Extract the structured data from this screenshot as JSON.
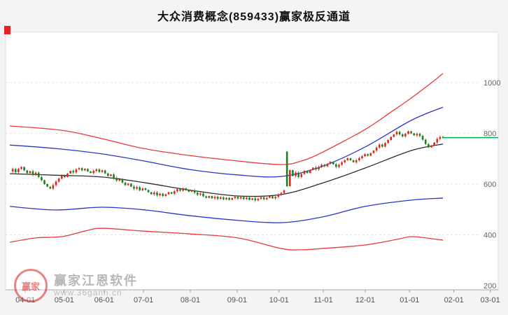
{
  "header": {
    "title": "大众消费概念(859433)赢家极反通道"
  },
  "watermark": {
    "logo_text": "赢家",
    "brand": "赢家江恩软件",
    "url": "www.36gann.cn"
  },
  "chart_data": {
    "type": "candlestick",
    "title": "大众消费概念(859433)赢家极反通道",
    "xlabel": "",
    "ylabel": "",
    "grid": "horizontal-dashed",
    "legend_position": "none",
    "ylim": [
      150,
      1080
    ],
    "y_ticks": [
      1000,
      800,
      600,
      400,
      200
    ],
    "x_ticks": [
      {
        "label": "04-01",
        "pos": 0.04
      },
      {
        "label": "05-01",
        "pos": 0.119
      },
      {
        "label": "06-01",
        "pos": 0.2
      },
      {
        "label": "07-01",
        "pos": 0.28
      },
      {
        "label": "08-01",
        "pos": 0.375
      },
      {
        "label": "09-01",
        "pos": 0.47
      },
      {
        "label": "10-01",
        "pos": 0.555
      },
      {
        "label": "11-01",
        "pos": 0.645
      },
      {
        "label": "12-01",
        "pos": 0.73
      },
      {
        "label": "01-01",
        "pos": 0.82
      },
      {
        "label": "02-01",
        "pos": 0.91
      },
      {
        "label": "03-01",
        "pos": 0.984
      }
    ],
    "up_color": "#d8291d",
    "down_color": "#1b821b",
    "last_price": 783,
    "last_price_color": "#00a651",
    "closes": [
      650,
      659,
      647,
      660,
      667,
      654,
      643,
      651,
      637,
      645,
      628,
      615,
      600,
      590,
      582,
      596,
      610,
      622,
      634,
      628,
      642,
      652,
      646,
      658,
      663,
      654,
      660,
      650,
      644,
      652,
      658,
      648,
      654,
      642,
      632,
      638,
      624,
      614,
      620,
      606,
      596,
      602,
      590,
      582,
      588,
      576,
      583,
      577,
      568,
      560,
      567,
      556,
      562,
      553,
      560,
      568,
      562,
      572,
      580,
      574,
      583,
      576,
      570,
      575,
      566,
      558,
      563,
      552,
      546,
      553,
      544,
      550,
      542,
      548,
      540,
      546,
      538,
      545,
      550,
      543,
      549,
      541,
      547,
      538,
      544,
      536,
      542,
      548,
      540,
      546,
      552,
      544,
      550,
      558,
      565,
      575,
      592,
      655,
      632,
      645,
      628,
      640,
      652,
      644,
      656,
      665,
      658,
      668,
      676,
      670,
      680,
      688,
      678,
      668,
      676,
      686,
      694,
      702,
      694,
      686,
      694,
      702,
      710,
      718,
      712,
      722,
      732,
      744,
      756,
      748,
      762,
      774,
      786,
      796,
      806,
      796,
      788,
      798,
      808,
      800,
      792,
      798,
      790,
      775,
      758,
      745,
      752,
      764,
      778,
      786,
      783
    ],
    "opens_override": {
      "96": 728
    },
    "channels": [
      {
        "name": "upper-red-envelope",
        "color": "#e8393c",
        "points": [
          [
            0,
            829
          ],
          [
            18,
            812
          ],
          [
            32,
            779
          ],
          [
            46,
            741
          ],
          [
            62,
            713
          ],
          [
            79,
            691
          ],
          [
            94,
            677
          ],
          [
            101,
            691
          ],
          [
            108,
            724
          ],
          [
            123,
            815
          ],
          [
            132,
            884
          ],
          [
            139,
            939
          ],
          [
            147,
            1008
          ],
          [
            150,
            1036
          ]
        ]
      },
      {
        "name": "upper-blue-rail",
        "color": "#2a35c8",
        "points": [
          [
            0,
            754
          ],
          [
            16,
            740
          ],
          [
            32,
            719
          ],
          [
            47,
            690
          ],
          [
            62,
            658
          ],
          [
            79,
            636
          ],
          [
            94,
            630
          ],
          [
            108,
            669
          ],
          [
            123,
            746
          ],
          [
            139,
            851
          ],
          [
            150,
            903
          ]
        ]
      },
      {
        "name": "middle-black-trend",
        "color": "#2b2b2b",
        "points": [
          [
            0,
            641
          ],
          [
            16,
            635
          ],
          [
            32,
            628
          ],
          [
            47,
            605
          ],
          [
            62,
            577
          ],
          [
            79,
            553
          ],
          [
            94,
            559
          ],
          [
            108,
            603
          ],
          [
            123,
            663
          ],
          [
            139,
            732
          ],
          [
            150,
            758
          ]
        ]
      },
      {
        "name": "lower-blue-rail",
        "color": "#2a35c8",
        "points": [
          [
            0,
            512
          ],
          [
            16,
            498
          ],
          [
            32,
            509
          ],
          [
            47,
            498
          ],
          [
            62,
            476
          ],
          [
            79,
            457
          ],
          [
            94,
            448
          ],
          [
            108,
            470
          ],
          [
            123,
            512
          ],
          [
            139,
            537
          ],
          [
            150,
            545
          ]
        ]
      },
      {
        "name": "lower-red-envelope",
        "color": "#e8393c",
        "points": [
          [
            0,
            371
          ],
          [
            9,
            388
          ],
          [
            18,
            393
          ],
          [
            26,
            415
          ],
          [
            32,
            426
          ],
          [
            46,
            415
          ],
          [
            62,
            404
          ],
          [
            79,
            388
          ],
          [
            94,
            346
          ],
          [
            101,
            341
          ],
          [
            108,
            346
          ],
          [
            123,
            360
          ],
          [
            134,
            382
          ],
          [
            139,
            393
          ],
          [
            144,
            388
          ],
          [
            150,
            379
          ]
        ]
      }
    ]
  }
}
